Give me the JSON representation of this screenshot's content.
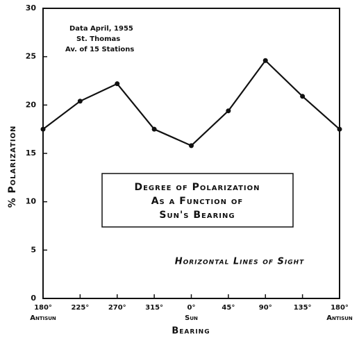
{
  "chart_data": {
    "type": "line",
    "y_label": "% Polarization",
    "x_label": "Bearing",
    "categories": [
      "180°",
      "225°",
      "270°",
      "315°",
      "0°",
      "45°",
      "90°",
      "135°",
      "180°"
    ],
    "category_sublabels": [
      "Antisun",
      null,
      null,
      null,
      "Sun",
      null,
      null,
      null,
      "Antisun"
    ],
    "series": [
      {
        "name": "Polarization",
        "color": "#111111",
        "values": [
          17.5,
          20.4,
          22.2,
          17.5,
          15.8,
          19.4,
          24.6,
          20.9,
          17.5
        ]
      }
    ],
    "ylim": [
      0,
      30
    ],
    "yticks": [
      0,
      5,
      10,
      15,
      20,
      25,
      30
    ],
    "grid": false,
    "data_note": [
      "Data  April, 1955",
      "St. Thomas",
      "Av. of 15 Stations"
    ],
    "boxed_title": [
      "Degree of Polarization",
      "As a Function of",
      "Sun's Bearing"
    ],
    "annotation": "Horizontal Lines of Sight"
  }
}
